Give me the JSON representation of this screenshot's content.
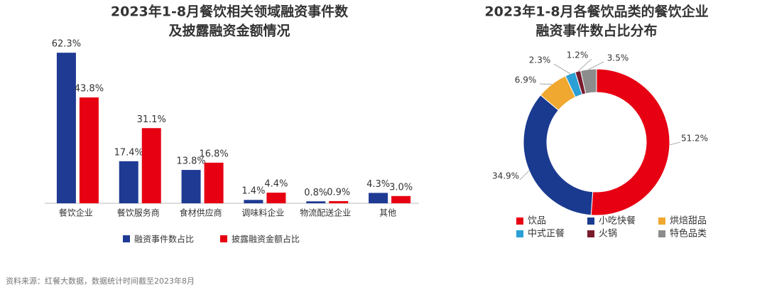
{
  "chart_data": [
    {
      "type": "bar",
      "title": [
        "2023年1-8月餐饮相关领域融资事件数",
        "及披露融资金额情况"
      ],
      "categories": [
        "餐饮企业",
        "餐饮服务商",
        "食材供应商",
        "调味料企业",
        "物流配送企业",
        "其他"
      ],
      "series": [
        {
          "name": "融资事件数占比",
          "color": "#1f3a93",
          "values": [
            62.3,
            17.4,
            13.8,
            1.4,
            0.8,
            4.3
          ],
          "value_labels": [
            "62.3%",
            "17.4%",
            "13.8%",
            "1.4%",
            "0.8%",
            "4.3%"
          ]
        },
        {
          "name": "披露融资金额占比",
          "color": "#e60012",
          "values": [
            43.8,
            31.1,
            16.8,
            4.4,
            0.9,
            3.0
          ],
          "value_labels": [
            "43.8%",
            "31.1%",
            "16.8%",
            "4.4%",
            "0.9%",
            "3.0%"
          ]
        }
      ],
      "ylim": [
        0,
        70
      ]
    },
    {
      "type": "donut",
      "title": [
        "2023年1-8月各餐饮品类的餐饮企业",
        "融资事件数占比分布"
      ],
      "categories": [
        "饮品",
        "小吃快餐",
        "烘焙甜品",
        "中式正餐",
        "火锅",
        "特色品类"
      ],
      "values": [
        51.2,
        34.9,
        6.9,
        2.3,
        1.2,
        3.5
      ],
      "value_labels": [
        "51.2%",
        "34.9%",
        "6.9%",
        "2.3%",
        "1.2%",
        "3.5%"
      ],
      "colors": [
        "#e60012",
        "#1a3a8f",
        "#f0a830",
        "#2b9fd6",
        "#7a1b2e",
        "#8c8c8c"
      ]
    }
  ],
  "source": "资料来源：红餐大数据，数据统计时间截至2023年8月"
}
